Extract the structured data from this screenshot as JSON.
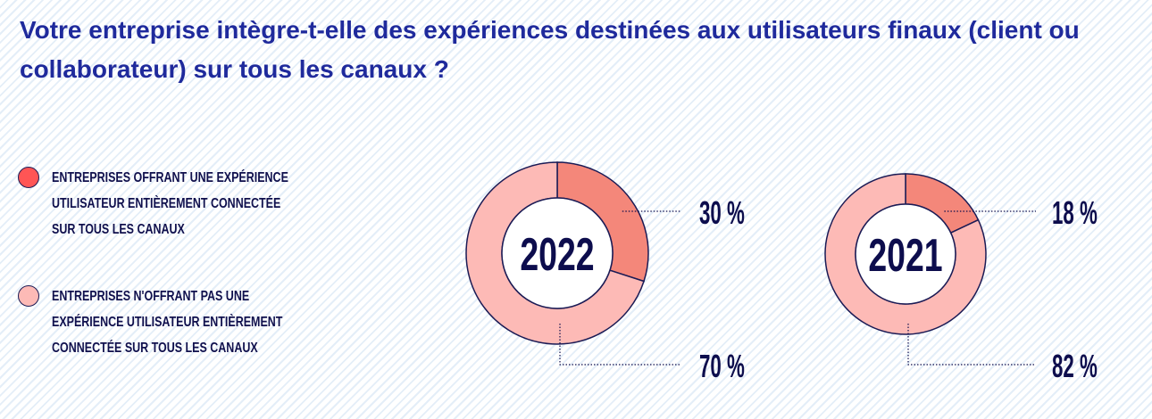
{
  "title": "Votre entreprise intègre-t-elle des expériences destinées aux utilisateurs finaux (client ou collaborateur) sur tous les canaux ?",
  "colors": {
    "title": "#1f2a9c",
    "text": "#0d0d4d",
    "connected": "#f4877a",
    "not_connected": "#fdbab6",
    "legend_connected": "#ff5555",
    "outline": "#1b1b55"
  },
  "legend": [
    {
      "label": "ENTREPRISES OFFRANT UNE EXPÉRIENCE\nUTILISATEUR ENTIÈREMENT CONNECTÉE\nSUR TOUS LES CANAUX"
    },
    {
      "label": "ENTREPRISES N'OFFRANT PAS UNE\nEXPÉRIENCE UTILISATEUR ENTIÈREMENT\nCONNECTÉE SUR TOUS LES CANAUX"
    }
  ],
  "chart_data": [
    {
      "type": "pie",
      "title": "2022",
      "categories": [
        "Expérience entièrement connectée",
        "Expérience non entièrement connectée"
      ],
      "values": [
        30,
        70
      ],
      "labels": [
        "30 %",
        "70 %"
      ]
    },
    {
      "type": "pie",
      "title": "2021",
      "categories": [
        "Expérience entièrement connectée",
        "Expérience non entièrement connectée"
      ],
      "values": [
        18,
        82
      ],
      "labels": [
        "18 %",
        "82 %"
      ]
    }
  ]
}
